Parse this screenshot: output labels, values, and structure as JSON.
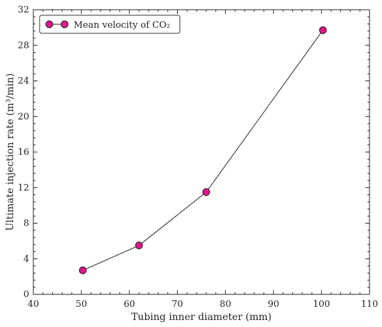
{
  "chart_data": {
    "type": "line",
    "title": "",
    "xlabel": "Tubing inner diameter (mm)",
    "ylabel": "Ultimate injection rate (m³/min)",
    "xlim": [
      40,
      110
    ],
    "ylim": [
      0,
      32
    ],
    "x_ticks": [
      "40",
      "50",
      "60",
      "70",
      "80",
      "90",
      "100",
      "110"
    ],
    "y_ticks": [
      "0",
      "4",
      "8",
      "12",
      "16",
      "20",
      "24",
      "28",
      "32"
    ],
    "grid": false,
    "legend": "top-left",
    "series": [
      {
        "name": "Mean velocity of CO₂",
        "color": "#e0158a",
        "points": [
          {
            "x": 50.3,
            "y": 2.7
          },
          {
            "x": 62.0,
            "y": 5.5
          },
          {
            "x": 76.0,
            "y": 11.5
          },
          {
            "x": 100.3,
            "y": 29.7
          }
        ]
      }
    ]
  }
}
